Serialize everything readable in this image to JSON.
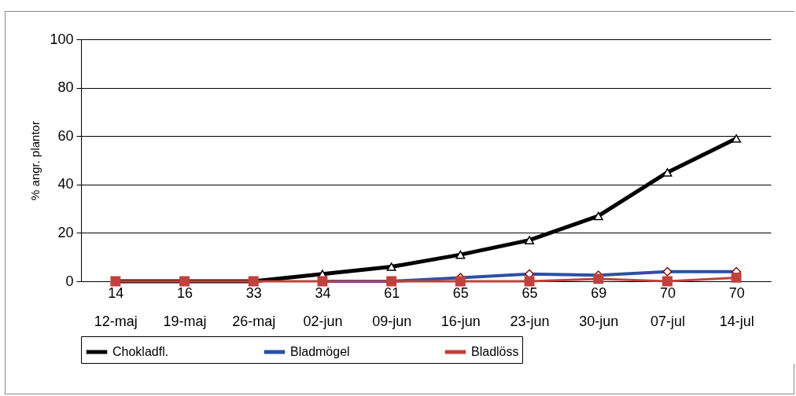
{
  "chart_data": {
    "type": "line",
    "ylabel": "% angr. plantor",
    "categories": [
      "14\n12-maj",
      "16\n19-maj",
      "33\n26-maj",
      "34\n02-jun",
      "61\n09-jun",
      "65\n16-jun",
      "65\n23-jun",
      "69\n30-jun",
      "70\n07-jul",
      "70\n14-jul"
    ],
    "series": [
      {
        "name": "Chokladfl.",
        "color": "#000000",
        "marker": "triangle",
        "values": [
          0,
          0,
          0,
          3,
          6,
          11,
          17,
          27,
          45,
          59
        ]
      },
      {
        "name": "Bladmögel",
        "color": "#2e50a4",
        "marker": "diamond",
        "values": [
          null,
          null,
          null,
          0,
          0,
          1.5,
          3,
          2.5,
          4,
          4
        ]
      },
      {
        "name": "Bladlöss",
        "color": "#c0413d",
        "marker": "square",
        "values": [
          0,
          0,
          0,
          0,
          0,
          0,
          0,
          1,
          0,
          1.5
        ]
      }
    ],
    "ylim": [
      0,
      100
    ],
    "yticks": [
      0,
      20,
      40,
      60,
      80,
      100
    ],
    "grid": "y",
    "legend": "bottom"
  }
}
